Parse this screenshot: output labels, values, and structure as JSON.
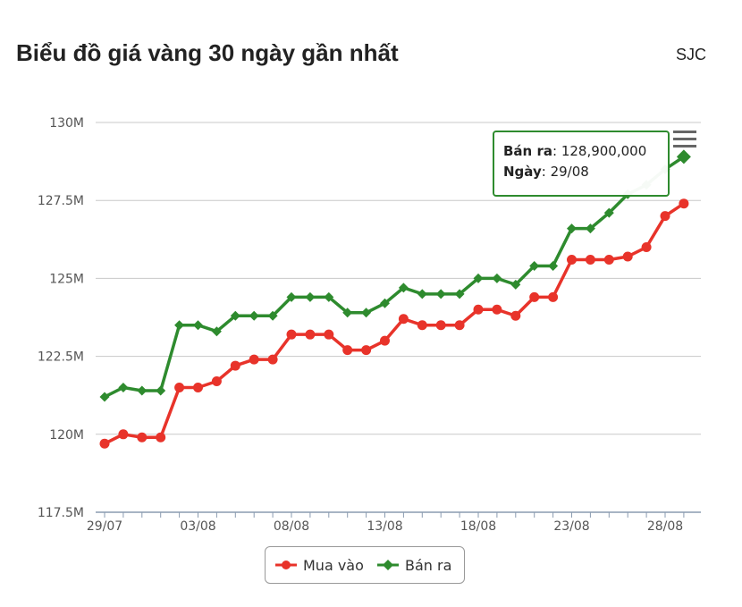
{
  "header": {
    "title": "Biểu đồ giá vàng 30 ngày gần nhất",
    "brand": "SJC"
  },
  "tooltip": {
    "series_label": "Bán ra",
    "value": "128,900,000",
    "date_label": "Ngày",
    "date": "29/08"
  },
  "legend": [
    {
      "label": "Mua vào",
      "color": "#e8332a",
      "marker": "circle"
    },
    {
      "label": "Bán ra",
      "color": "#2e8b2e",
      "marker": "diamond"
    }
  ],
  "chart_data": {
    "type": "line",
    "title": "Biểu đồ giá vàng 30 ngày gần nhất",
    "xlabel": "",
    "ylabel": "",
    "ylim": [
      117.5,
      130
    ],
    "y_ticks": [
      "117.5M",
      "120M",
      "122.5M",
      "125M",
      "127.5M",
      "130M"
    ],
    "y_tick_values": [
      117.5,
      120,
      122.5,
      125,
      127.5,
      130
    ],
    "x_tick_labels": [
      "29/07",
      "03/08",
      "08/08",
      "13/08",
      "18/08",
      "23/08",
      "28/08"
    ],
    "x_tick_index": [
      0,
      5,
      10,
      15,
      20,
      25,
      30
    ],
    "grid": true,
    "legend_position": "bottom-center",
    "series": [
      {
        "name": "Mua vào",
        "color": "#e8332a",
        "marker": "circle",
        "values": [
          119.7,
          120.0,
          119.9,
          119.9,
          121.5,
          121.5,
          121.7,
          122.2,
          122.4,
          122.4,
          123.2,
          123.2,
          123.2,
          122.7,
          122.7,
          123.0,
          123.7,
          123.5,
          123.5,
          123.5,
          124.0,
          124.0,
          123.8,
          124.4,
          124.4,
          125.6,
          125.6,
          125.6,
          125.7,
          126.0,
          127.0,
          127.4
        ]
      },
      {
        "name": "Bán ra",
        "color": "#2e8b2e",
        "marker": "diamond",
        "values": [
          121.2,
          121.5,
          121.4,
          121.4,
          123.5,
          123.5,
          123.3,
          123.8,
          123.8,
          123.8,
          124.4,
          124.4,
          124.4,
          123.9,
          123.9,
          124.2,
          124.7,
          124.5,
          124.5,
          124.5,
          125.0,
          125.0,
          124.8,
          125.4,
          125.4,
          126.6,
          126.6,
          127.1,
          127.7,
          128.0,
          128.5,
          128.9
        ]
      }
    ]
  }
}
